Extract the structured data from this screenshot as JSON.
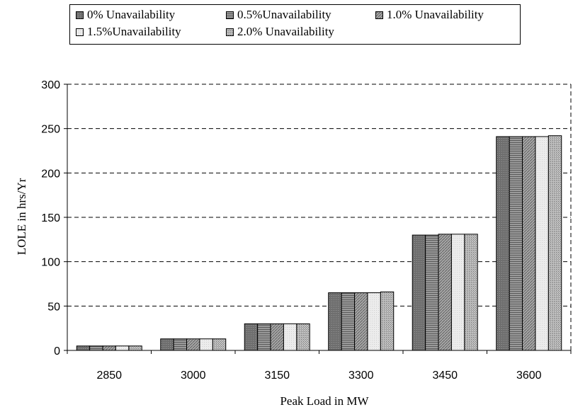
{
  "chart_data": {
    "type": "bar",
    "xlabel": "Peak Load in MW",
    "ylabel": "LOLE in hrs/Yr",
    "categories": [
      "2850",
      "3000",
      "3150",
      "3300",
      "3450",
      "3600"
    ],
    "ylim": [
      0,
      300
    ],
    "yticks": [
      "0",
      "50",
      "100",
      "150",
      "200",
      "250",
      "300"
    ],
    "grid": "horizontal dashed",
    "legend_position": "top",
    "series": [
      {
        "name": "0% Unavailability",
        "values": [
          5,
          13,
          30,
          65,
          130,
          241
        ],
        "color": "#707070"
      },
      {
        "name": "0.5%Unavailability",
        "values": [
          5,
          13,
          30,
          65,
          130,
          241
        ],
        "color": "#8c8c8c"
      },
      {
        "name": "1.0% Unavailability",
        "values": [
          5,
          13,
          30,
          65,
          131,
          241
        ],
        "color": "#a0a0a0"
      },
      {
        "name": "1.5%Unavailability",
        "values": [
          5,
          13,
          30,
          65,
          131,
          241
        ],
        "color": "#e4e4e4"
      },
      {
        "name": "2.0% Unavailability",
        "values": [
          5,
          13,
          30,
          66,
          131,
          242
        ],
        "color": "#b4b4b4"
      }
    ]
  }
}
